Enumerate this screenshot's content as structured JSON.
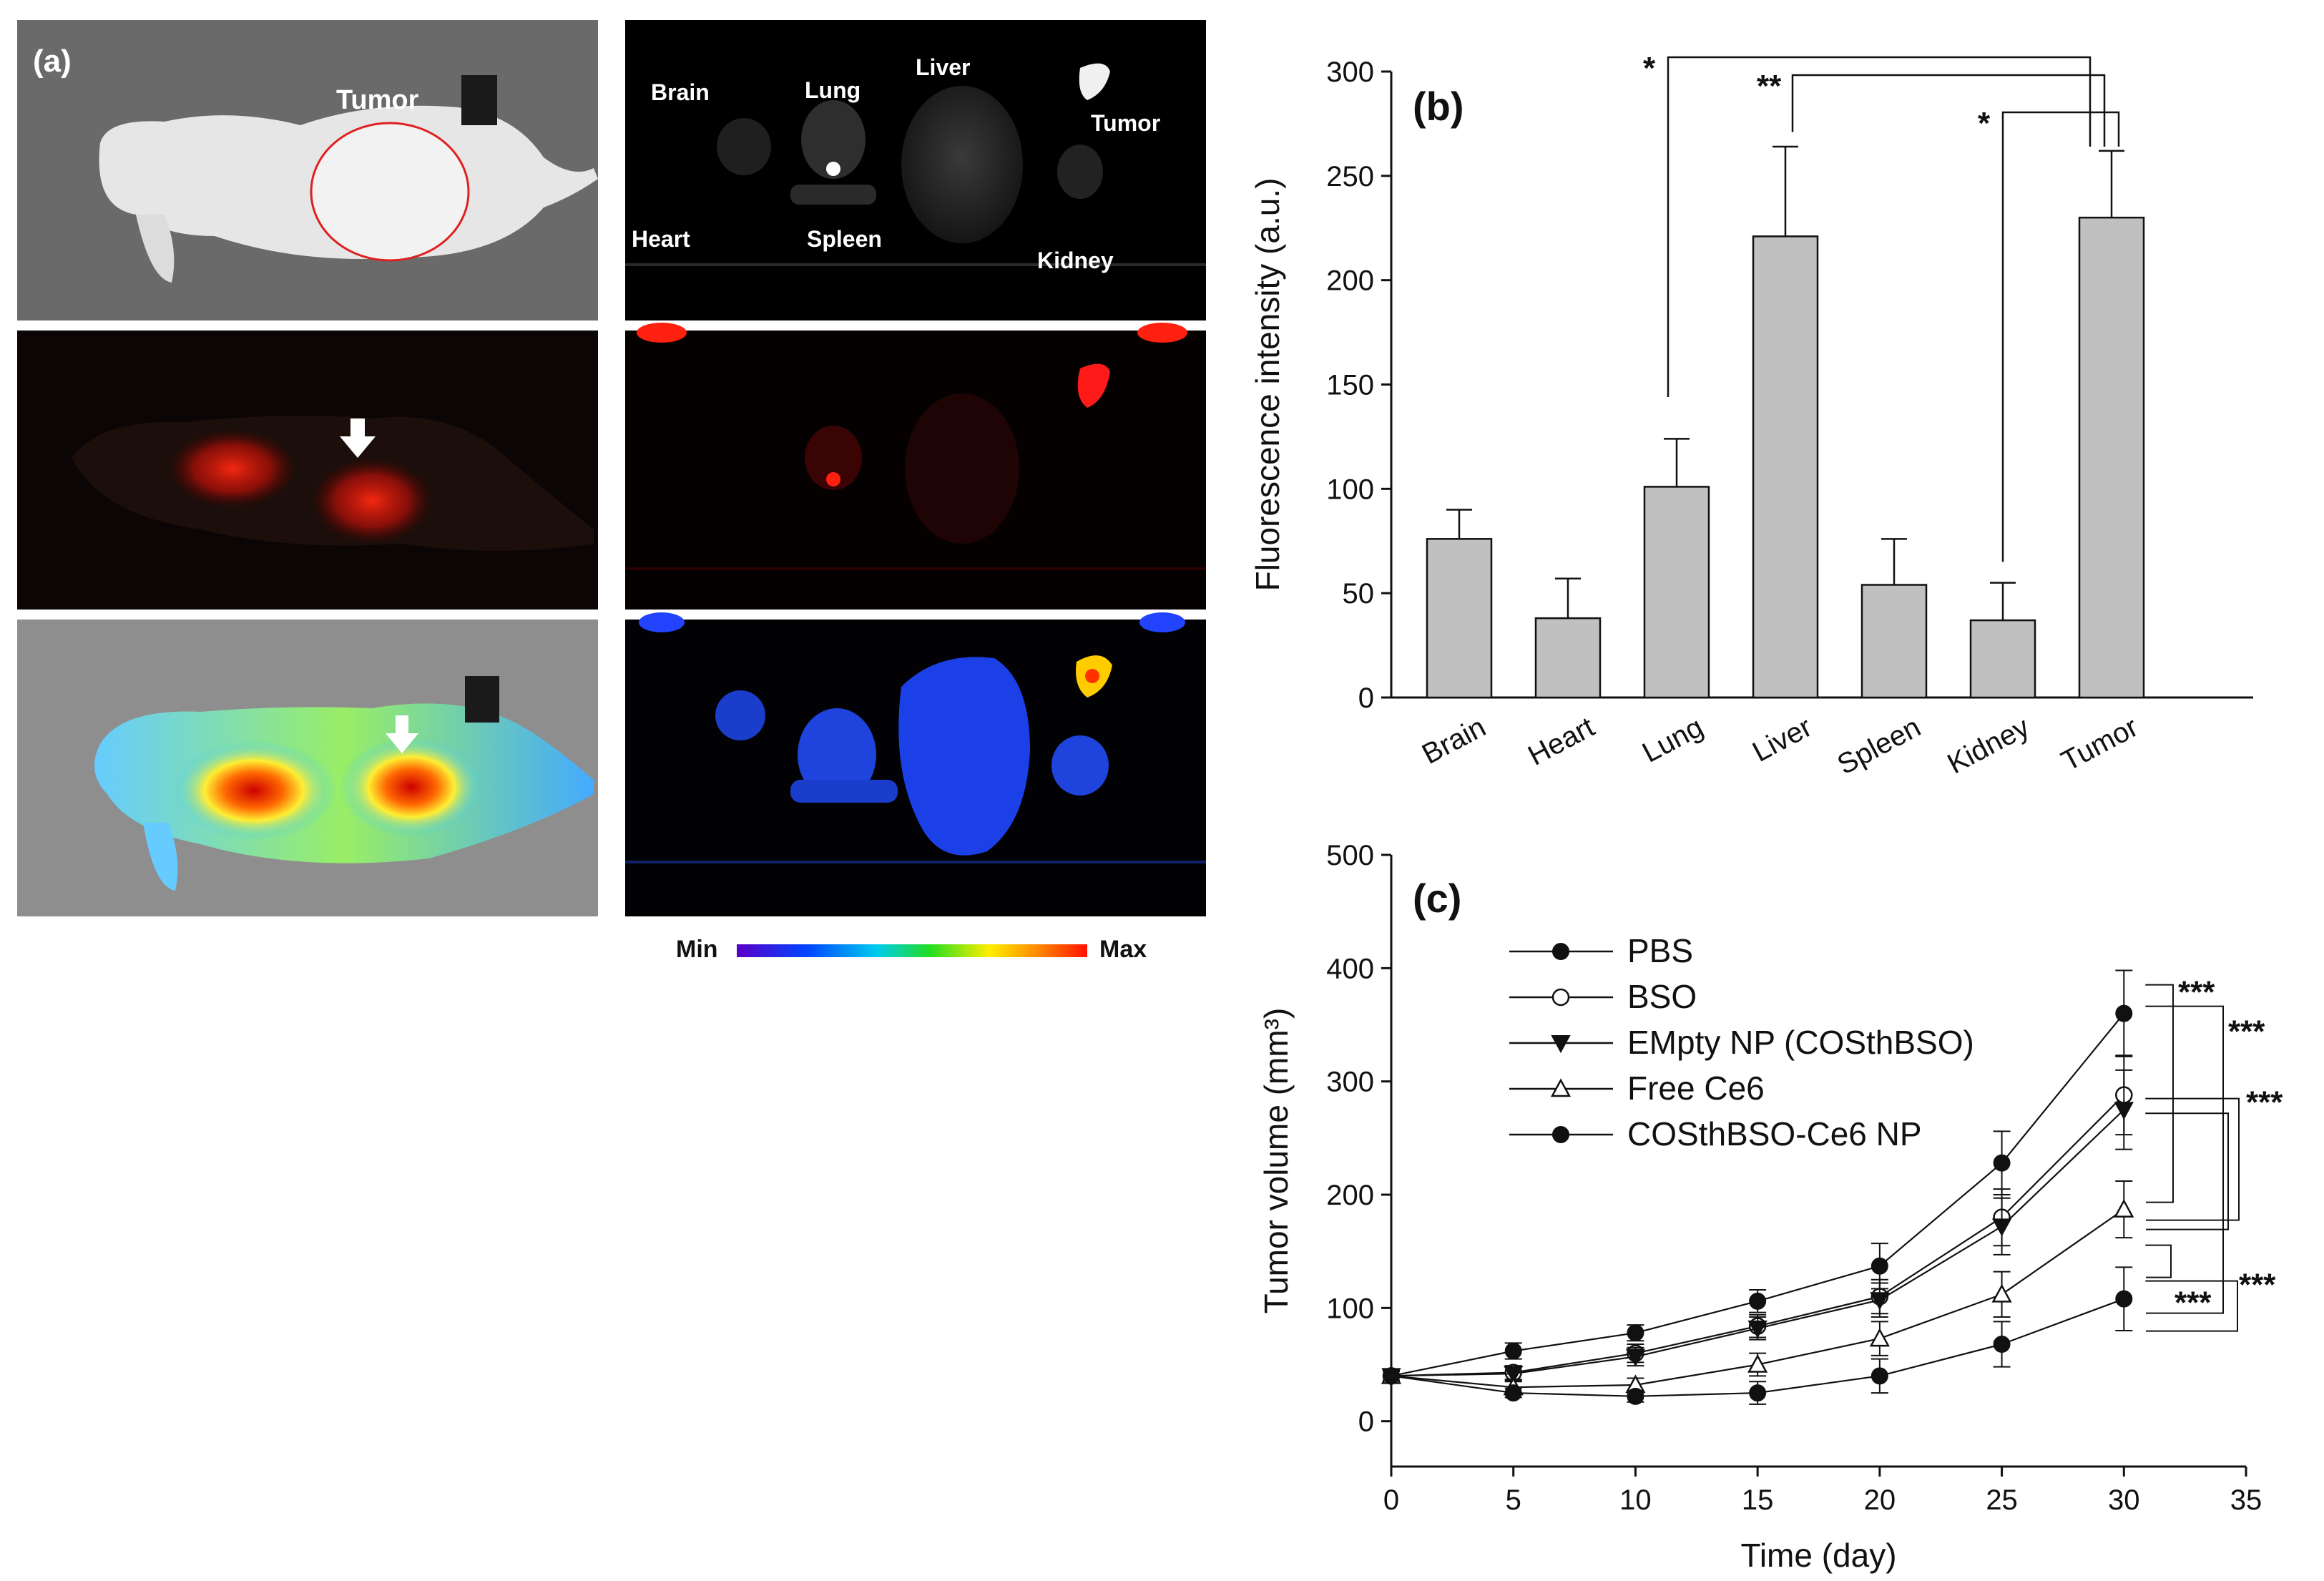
{
  "panel_a": {
    "label": "(a)",
    "tumor_label": "Tumor",
    "organ_labels": {
      "brain": "Brain",
      "lung": "Lung",
      "liver": "Liver",
      "tumor": "Tumor",
      "heart": "Heart",
      "spleen": "Spleen",
      "kidney": "Kidney"
    },
    "colorbar": {
      "min": "Min",
      "max": "Max"
    }
  },
  "chart_data": [
    {
      "panel": "(b)",
      "type": "bar",
      "categories": [
        "Brain",
        "Heart",
        "Lung",
        "Liver",
        "Spleen",
        "Kidney",
        "Tumor"
      ],
      "values": [
        76,
        38,
        101,
        221,
        54,
        37,
        230
      ],
      "errors": [
        14,
        19,
        23,
        43,
        22,
        18,
        32
      ],
      "ylabel": "Fluorescence intensity (a.u.)",
      "ylim": [
        0,
        300
      ],
      "yticks": [
        0,
        50,
        100,
        150,
        200,
        250,
        300
      ],
      "bar_color": "#c0c0c0",
      "significance": [
        {
          "from": "Lung",
          "to": "Tumor",
          "label": "*"
        },
        {
          "from": "Liver",
          "to": "Tumor",
          "label": "**"
        },
        {
          "from": "Kidney",
          "to": "Tumor",
          "label": "*"
        }
      ]
    },
    {
      "panel": "(c)",
      "type": "line",
      "x": [
        0,
        5,
        10,
        15,
        20,
        25,
        30
      ],
      "xlabel": "Time (day)",
      "ylabel": "Tumor volume (mm³)",
      "xlim": [
        0,
        35
      ],
      "ylim": [
        -40,
        500
      ],
      "xticks": [
        0,
        5,
        10,
        15,
        20,
        25,
        30,
        35
      ],
      "yticks": [
        0,
        100,
        200,
        300,
        400,
        500
      ],
      "series": [
        {
          "name": "PBS",
          "marker": "filled-circle",
          "values": [
            40,
            62,
            78,
            106,
            137,
            228,
            360
          ],
          "errors": [
            5,
            7,
            7,
            10,
            20,
            28,
            38
          ]
        },
        {
          "name": "BSO",
          "marker": "open-circle",
          "values": [
            40,
            43,
            60,
            84,
            110,
            180,
            288
          ],
          "errors": [
            5,
            6,
            8,
            10,
            15,
            25,
            35
          ]
        },
        {
          "name": "EMpty NP (COSthBSO)",
          "marker": "filled-triangle-down",
          "values": [
            40,
            42,
            57,
            82,
            107,
            172,
            275
          ],
          "errors": [
            5,
            6,
            8,
            10,
            15,
            25,
            35
          ]
        },
        {
          "name": "Free Ce6",
          "marker": "open-triangle-up",
          "values": [
            40,
            30,
            32,
            50,
            73,
            112,
            187
          ],
          "errors": [
            5,
            5,
            6,
            10,
            15,
            20,
            25
          ]
        },
        {
          "name": "COSthBSO-Ce6 NP",
          "marker": "filled-circle",
          "values": [
            40,
            25,
            22,
            25,
            40,
            68,
            108
          ],
          "errors": [
            4,
            4,
            5,
            10,
            15,
            20,
            28
          ]
        }
      ],
      "significance_label": "***"
    }
  ]
}
